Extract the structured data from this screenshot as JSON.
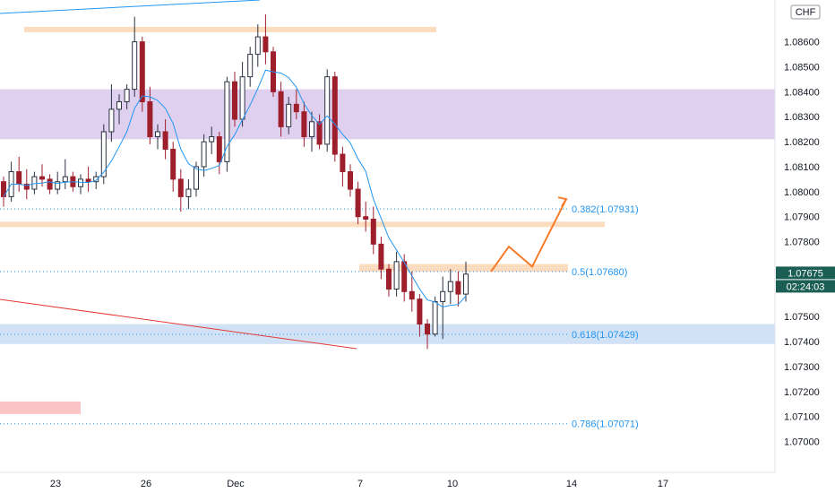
{
  "chart_data": {
    "type": "candlestick",
    "currency": "CHF",
    "y_range": [
      1.0693,
      1.0871
    ],
    "y_ticks": [
      "1.08600",
      "1.08500",
      "1.08400",
      "1.08300",
      "1.08200",
      "1.08100",
      "1.08000",
      "1.07900",
      "1.07800",
      "1.07500",
      "1.07400",
      "1.07300",
      "1.07200",
      "1.07100",
      "1.07000"
    ],
    "x_ticks": [
      "23",
      "26",
      "Dec",
      "7",
      "10",
      "14",
      "17"
    ],
    "current_price": "1.07675",
    "countdown": "02:24:03",
    "fib_levels": [
      {
        "label": "0.382(1.07931)",
        "price": 1.07931
      },
      {
        "label": "0.5(1.07680)",
        "price": 1.0768
      },
      {
        "label": "0.618(1.07429)",
        "price": 1.07429
      },
      {
        "label": "0.786(1.07071)",
        "price": 1.07071
      }
    ],
    "zones": [
      {
        "kind": "resistance",
        "from": 1.0865,
        "to": 1.0866,
        "color": "#fcd6b3"
      },
      {
        "kind": "supply",
        "from": 1.0821,
        "to": 1.0841,
        "color": "#d9c8ec"
      },
      {
        "kind": "resistance",
        "from": 1.0786,
        "to": 1.0788,
        "color": "#fcd6b3"
      },
      {
        "kind": "pivot",
        "from": 1.0768,
        "to": 1.0771,
        "color": "#fcd6b3"
      },
      {
        "kind": "demand",
        "from": 1.0739,
        "to": 1.0747,
        "color": "#c9dcf5"
      },
      {
        "kind": "demand",
        "from": 1.0711,
        "to": 1.0716,
        "color": "#f9b9bb"
      }
    ],
    "projection": [
      {
        "x": "10 Dec",
        "price": 1.0768
      },
      {
        "x": "11 Dec",
        "price": 1.0778
      },
      {
        "x": "12 Dec",
        "price": 1.077
      },
      {
        "x": "13 Dec",
        "price": 1.0797
      }
    ],
    "colors": {
      "up": "#26a69a",
      "down": "#ef5350",
      "candle_dark": "#2a3140",
      "candle_red": "#9e1f2c",
      "ma_line": "#2196f3",
      "fib_text": "#2196f3",
      "projection": "#f57c2b",
      "badge": "#1b5e54"
    },
    "candles": [
      [
        1.0804,
        1.0806,
        1.0794,
        1.0798
      ],
      [
        1.0798,
        1.0812,
        1.0796,
        1.0808
      ],
      [
        1.0808,
        1.0814,
        1.08,
        1.0803
      ],
      [
        1.0803,
        1.0809,
        1.0797,
        1.0801
      ],
      [
        1.0801,
        1.0808,
        1.0799,
        1.0806
      ],
      [
        1.0806,
        1.0811,
        1.0802,
        1.0805
      ],
      [
        1.0805,
        1.0807,
        1.0799,
        1.0801
      ],
      [
        1.0801,
        1.0808,
        1.0799,
        1.0804
      ],
      [
        1.0804,
        1.0813,
        1.0801,
        1.0806
      ],
      [
        1.0806,
        1.0808,
        1.08,
        1.0802
      ],
      [
        1.0802,
        1.0807,
        1.0799,
        1.0805
      ],
      [
        1.0805,
        1.081,
        1.08,
        1.0804
      ],
      [
        1.0804,
        1.0808,
        1.0801,
        1.0806
      ],
      [
        1.0806,
        1.0827,
        1.0803,
        1.0824
      ],
      [
        1.0824,
        1.0843,
        1.082,
        1.0833
      ],
      [
        1.0833,
        1.0839,
        1.0827,
        1.0836
      ],
      [
        1.0836,
        1.0843,
        1.0833,
        1.0841
      ],
      [
        1.0841,
        1.087,
        1.0838,
        1.086
      ],
      [
        1.086,
        1.0862,
        1.0832,
        1.0836
      ],
      [
        1.0836,
        1.0842,
        1.0819,
        1.0822
      ],
      [
        1.0822,
        1.0827,
        1.0817,
        1.0824
      ],
      [
        1.0824,
        1.0829,
        1.0813,
        1.0817
      ],
      [
        1.0817,
        1.082,
        1.08,
        1.0805
      ],
      [
        1.0805,
        1.0809,
        1.0792,
        1.0798
      ],
      [
        1.0798,
        1.0805,
        1.0793,
        1.0801
      ],
      [
        1.0801,
        1.0812,
        1.0798,
        1.081
      ],
      [
        1.081,
        1.0823,
        1.0806,
        1.082
      ],
      [
        1.082,
        1.0826,
        1.0815,
        1.0822
      ],
      [
        1.0822,
        1.0824,
        1.0807,
        1.0812
      ],
      [
        1.0812,
        1.0846,
        1.0808,
        1.0844
      ],
      [
        1.0844,
        1.0848,
        1.0826,
        1.0829
      ],
      [
        1.0829,
        1.0852,
        1.0826,
        1.0846
      ],
      [
        1.0846,
        1.0858,
        1.0842,
        1.0855
      ],
      [
        1.0855,
        1.0867,
        1.085,
        1.0862
      ],
      [
        1.0862,
        1.0871,
        1.0851,
        1.0856
      ],
      [
        1.0856,
        1.0858,
        1.0838,
        1.084
      ],
      [
        1.084,
        1.0844,
        1.0822,
        1.0826
      ],
      [
        1.0826,
        1.0838,
        1.0823,
        1.0835
      ],
      [
        1.0835,
        1.0841,
        1.0829,
        1.0832
      ],
      [
        1.0832,
        1.0836,
        1.0818,
        1.0822
      ],
      [
        1.0822,
        1.0832,
        1.0816,
        1.0828
      ],
      [
        1.0828,
        1.0831,
        1.0817,
        1.0819
      ],
      [
        1.0819,
        1.0849,
        1.0816,
        1.0846
      ],
      [
        1.0846,
        1.0848,
        1.0812,
        1.0815
      ],
      [
        1.0815,
        1.0818,
        1.0802,
        1.0808
      ],
      [
        1.0808,
        1.0811,
        1.0798,
        1.0801
      ],
      [
        1.0801,
        1.0804,
        1.0787,
        1.079
      ],
      [
        1.079,
        1.0796,
        1.0784,
        1.0789
      ],
      [
        1.0789,
        1.0794,
        1.0775,
        1.0779
      ],
      [
        1.0779,
        1.0782,
        1.0765,
        1.0769
      ],
      [
        1.0769,
        1.0771,
        1.0758,
        1.0761
      ],
      [
        1.0761,
        1.0776,
        1.0758,
        1.0772
      ],
      [
        1.0772,
        1.0775,
        1.0756,
        1.076
      ],
      [
        1.076,
        1.0768,
        1.0752,
        1.0757
      ],
      [
        1.0757,
        1.0759,
        1.0742,
        1.0747
      ],
      [
        1.0747,
        1.0749,
        1.0737,
        1.0743
      ],
      [
        1.0743,
        1.0758,
        1.0742,
        1.0756
      ],
      [
        1.0756,
        1.0766,
        1.0741,
        1.076
      ],
      [
        1.076,
        1.0769,
        1.0755,
        1.0764
      ],
      [
        1.0764,
        1.0768,
        1.0754,
        1.0759
      ],
      [
        1.0759,
        1.0772,
        1.0756,
        1.0767
      ]
    ]
  }
}
